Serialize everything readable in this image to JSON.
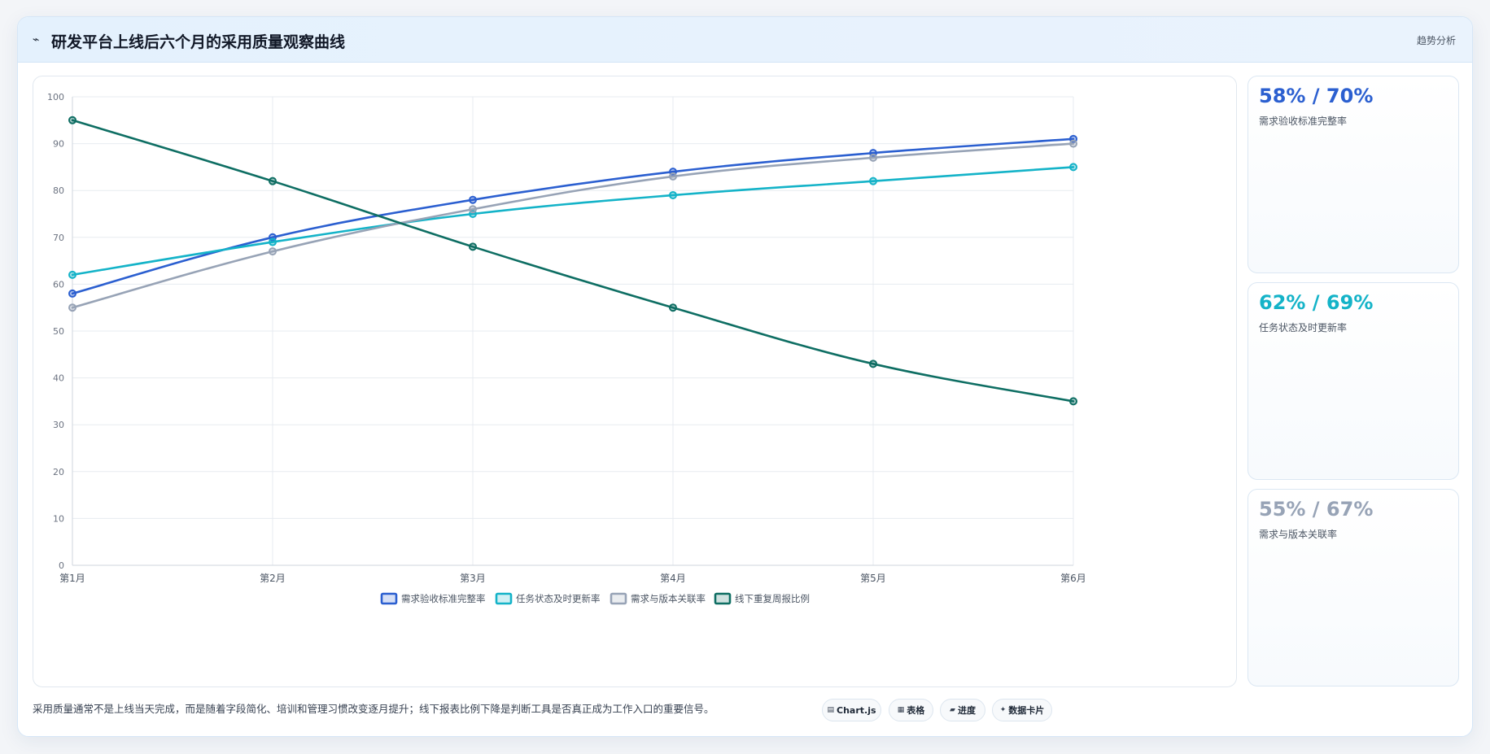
{
  "header": {
    "icon": "trend-line-icon",
    "title": "研发平台上线后六个月的采用质量观察曲线",
    "action_label": "趋势分析"
  },
  "kpis": [
    {
      "value": "58% / 70%",
      "label": "需求验收标准完整率",
      "color": "#2b5fd0"
    },
    {
      "value": "62% / 69%",
      "label": "任务状态及时更新率",
      "color": "#14b3c8"
    },
    {
      "value": "55% / 67%",
      "label": "需求与版本关联率",
      "color": "#97a3b6"
    }
  ],
  "footnote": "采用质量通常不是上线当天完成，而是随着字段简化、培训和管理习惯改变逐月提升；线下报表比例下降是判断工具是否真正成为工作入口的重要信号。",
  "chips": [
    {
      "icon": "chart-icon",
      "glyph": "▤",
      "label": "Chart.js"
    },
    {
      "icon": "table-icon",
      "glyph": "▦",
      "label": "表格"
    },
    {
      "icon": "progress-icon",
      "glyph": "▰",
      "label": "进度"
    },
    {
      "icon": "data-card-icon",
      "glyph": "✦",
      "label": "数据卡片"
    }
  ],
  "chart_data": {
    "type": "line",
    "categories": [
      "第1月",
      "第2月",
      "第3月",
      "第4月",
      "第5月",
      "第6月"
    ],
    "ylim": [
      0,
      100
    ],
    "yticks": [
      0,
      10,
      20,
      30,
      40,
      50,
      60,
      70,
      80,
      90,
      100
    ],
    "grid": true,
    "legend_position": "bottom",
    "series": [
      {
        "name": "需求验收标准完整率",
        "color": "#2b5fd0",
        "values": [
          58,
          70,
          78,
          84,
          88,
          91
        ]
      },
      {
        "name": "任务状态及时更新率",
        "color": "#14b3c8",
        "values": [
          62,
          69,
          75,
          79,
          82,
          85
        ]
      },
      {
        "name": "需求与版本关联率",
        "color": "#97a3b6",
        "values": [
          55,
          67,
          76,
          83,
          87,
          90
        ]
      },
      {
        "name": "线下重复周报比例",
        "color": "#0e6e63",
        "values": [
          95,
          82,
          68,
          55,
          43,
          35
        ]
      }
    ]
  }
}
